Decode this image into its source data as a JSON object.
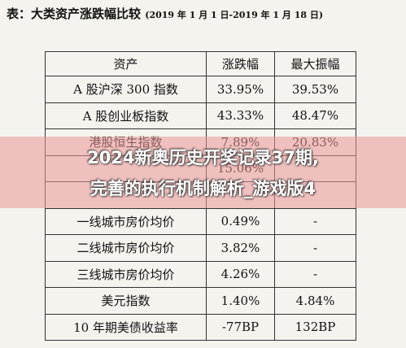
{
  "header": {
    "label": "表：",
    "title": "大类资产涨跌幅比较",
    "period": "(2019 年 1 月 1 日-2019 年 1 月 18 日)"
  },
  "table": {
    "columns": [
      "资产",
      "涨跌幅",
      "最大振幅"
    ],
    "rows": [
      {
        "asset": "A 股沪深 300 指数",
        "change": "33.95%",
        "amplitude": "39.53%"
      },
      {
        "asset": "A 股创业板指数",
        "change": "43.33%",
        "amplitude": "48.47%"
      },
      {
        "asset": "港股恒生指数",
        "change": "7.89%",
        "amplitude": "20.83%"
      },
      {
        "change": "15.06%"
      },
      {},
      {
        "asset": "一线城市房价均价",
        "change": "0.49%",
        "amplitude": "-"
      },
      {
        "asset": "二线城市房价均价",
        "change": "3.82%",
        "amplitude": "-"
      },
      {
        "asset": "三线城市房价均价",
        "change": "4.26%",
        "amplitude": "-"
      },
      {
        "asset": "美元指数",
        "change": "1.40%",
        "amplitude": "4.84%"
      },
      {
        "asset": "10 年期美债收益率",
        "change": "-77BP",
        "amplitude": "132BP"
      }
    ]
  },
  "banner": {
    "line1": "2024新奥历史开奖记录37期,",
    "line2": "完善的执行机制解析_游戏版4"
  }
}
